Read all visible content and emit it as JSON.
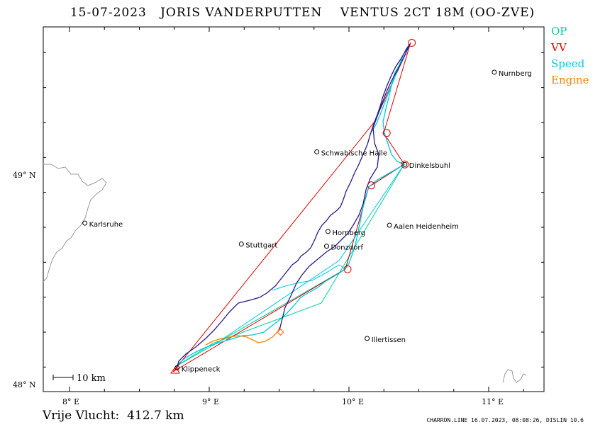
{
  "header": {
    "date": "15-07-2023",
    "pilot": "JORIS VANDERPUTTEN",
    "glider": "VENTUS 2CT 18M (OO-ZVE)"
  },
  "legend": [
    {
      "label": "OP",
      "color": "#00d090"
    },
    {
      "label": "VV",
      "color": "#e00000"
    },
    {
      "label": "Speed",
      "color": "#00c8e0"
    },
    {
      "label": "Engine",
      "color": "#ff8000"
    }
  ],
  "axes": {
    "x_ticks": [
      {
        "value": 8,
        "label": "8° E"
      },
      {
        "value": 9,
        "label": "9° E"
      },
      {
        "value": 10,
        "label": "10° E"
      },
      {
        "value": 11,
        "label": "11° E"
      }
    ],
    "y_ticks": [
      {
        "value": 48,
        "label": "48° N"
      },
      {
        "value": 49,
        "label": "49° N"
      }
    ]
  },
  "scale_bar": {
    "label": "10 km"
  },
  "places": [
    {
      "name": "Nurnberg",
      "lon": 11.04,
      "lat": 49.49
    },
    {
      "name": "Schwabische Halle",
      "lon": 9.77,
      "lat": 49.11
    },
    {
      "name": "Dinkelsbuhl",
      "lon": 10.4,
      "lat": 49.05
    },
    {
      "name": "Karlsruhe",
      "lon": 8.11,
      "lat": 48.77
    },
    {
      "name": "Aalen Heidenheim",
      "lon": 10.29,
      "lat": 48.76
    },
    {
      "name": "Hornberg",
      "lon": 9.85,
      "lat": 48.73
    },
    {
      "name": "Stuttgart",
      "lon": 9.23,
      "lat": 48.67
    },
    {
      "name": "Donzdorf",
      "lon": 9.84,
      "lat": 48.66
    },
    {
      "name": "Illertissen",
      "lon": 10.13,
      "lat": 48.22
    },
    {
      "name": "Klippeneck",
      "lon": 8.77,
      "lat": 48.08
    }
  ],
  "turnpoints": [
    {
      "lon": 10.45,
      "lat": 49.63
    },
    {
      "lon": 10.27,
      "lat": 49.2
    },
    {
      "lon": 10.4,
      "lat": 49.05
    },
    {
      "lon": 10.16,
      "lat": 48.95
    },
    {
      "lon": 9.99,
      "lat": 48.55
    },
    {
      "lon": 9.51,
      "lat": 48.25
    }
  ],
  "free_flight": {
    "label": "Vrije Vlucht:",
    "value": "412.7 km"
  },
  "credit": "CHARRON.LINE 16.07.2023, 08:08:26, DISLIN 10.6"
}
